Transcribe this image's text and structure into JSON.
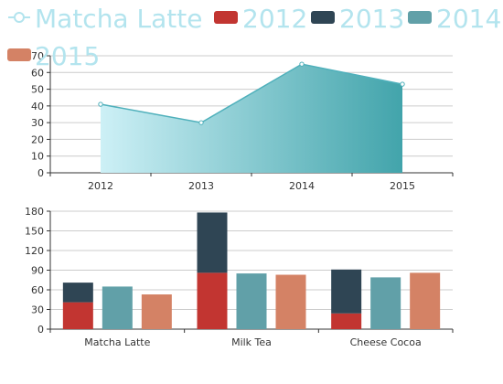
{
  "colors": {
    "c2012": "#c23531",
    "c2013": "#2f4554",
    "c2014": "#61a0a8",
    "c2015": "#d48265",
    "area_start": "#cdf0f6",
    "area_end": "#42a4ab",
    "line": "#4fb0bb",
    "legend_text": "#b3e4ee",
    "grid": "#cccccc",
    "axis": "#333333"
  },
  "legend": [
    "Matcha Latte",
    "2012",
    "2013",
    "2014",
    "2015"
  ],
  "chart_data": [
    {
      "type": "area",
      "series": [
        {
          "name": "Matcha Latte",
          "values": [
            41,
            30,
            65,
            53
          ]
        }
      ],
      "categories": [
        "2012",
        "2013",
        "2014",
        "2015"
      ],
      "ylim": [
        0,
        70
      ],
      "yticks": [
        0,
        10,
        20,
        30,
        40,
        50,
        60,
        70
      ],
      "grid": true
    },
    {
      "type": "bar",
      "categories": [
        "Matcha Latte",
        "Milk Tea",
        "Cheese Cocoa"
      ],
      "series": [
        {
          "name": "2012",
          "values": [
            41,
            86,
            24
          ],
          "stack": "a"
        },
        {
          "name": "2013",
          "values": [
            30,
            92,
            67
          ],
          "stack": "a"
        },
        {
          "name": "2014",
          "values": [
            65,
            85,
            79
          ]
        },
        {
          "name": "2015",
          "values": [
            53,
            83,
            86
          ]
        }
      ],
      "ylim": [
        0,
        180
      ],
      "yticks": [
        0,
        30,
        60,
        90,
        120,
        150,
        180
      ],
      "grid": true
    }
  ]
}
